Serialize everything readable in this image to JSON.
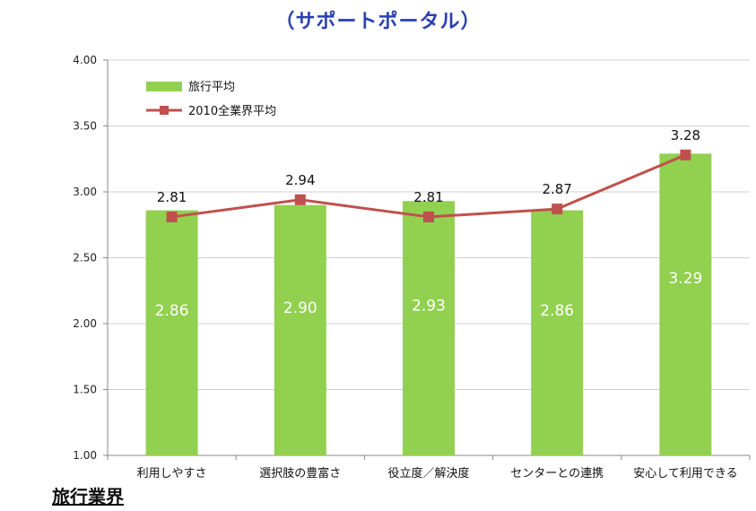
{
  "title": "（サポートポータル）",
  "footer": "旅行業界",
  "colors": {
    "bar": "#92d050",
    "line": "#c0504d",
    "title": "#2b3fb0"
  },
  "chart_data": {
    "type": "bar",
    "categories": [
      "利用しやすさ",
      "選択肢の豊富さ",
      "役立度／解決度",
      "センターとの連携",
      "安心して利用できる"
    ],
    "series": [
      {
        "name": "旅行平均",
        "type": "bar",
        "values": [
          2.86,
          2.9,
          2.93,
          2.86,
          3.29
        ],
        "labels": [
          "2.86",
          "2.90",
          "2.93",
          "2.86",
          "3.29"
        ]
      },
      {
        "name": "2010全業界平均",
        "type": "line",
        "values": [
          2.81,
          2.94,
          2.81,
          2.87,
          3.28
        ],
        "labels": [
          "2.81",
          "2.94",
          "2.81",
          "2.87",
          "3.28"
        ]
      }
    ],
    "yticks": [
      "1.00",
      "1.50",
      "2.00",
      "2.50",
      "3.00",
      "3.50",
      "4.00"
    ],
    "ylim": [
      1.0,
      4.0
    ],
    "grid": true,
    "legend_position": "top-left"
  }
}
